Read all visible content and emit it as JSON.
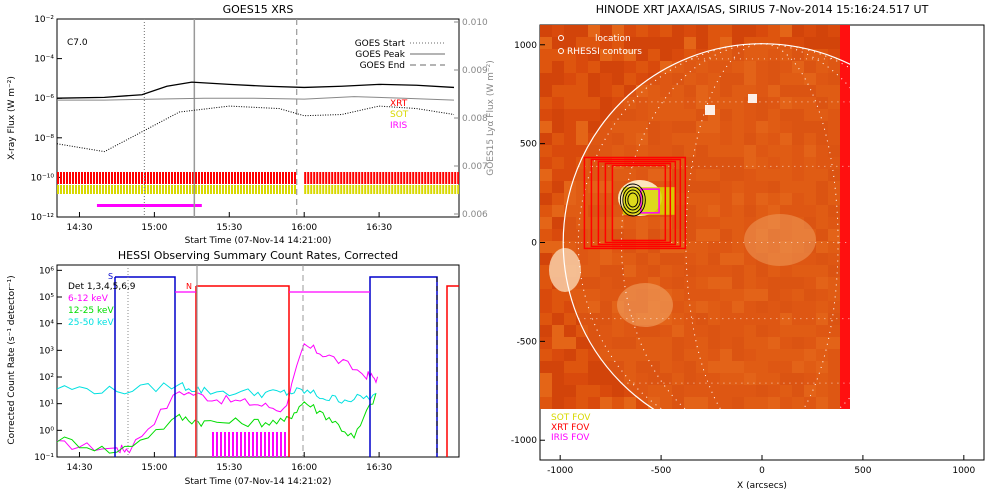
{
  "goes_panel": {
    "title": "GOES15 XRS",
    "flare_class": "C7.0",
    "ylabel": "X-ray Flux (W m⁻²)",
    "y2label": "GOES15 Lyα Flux (W m⁻²)",
    "xlabel": "Start Time (07-Nov-14 14:21:00)",
    "y_ticks": [
      "10⁻²",
      "10⁻⁴",
      "10⁻⁶",
      "10⁻⁸",
      "10⁻¹⁰",
      "10⁻¹²"
    ],
    "y2_ticks": [
      "0.010",
      "0.009",
      "0.008",
      "0.007",
      "0.006"
    ],
    "x_ticks": [
      "14:30",
      "15:00",
      "15:30",
      "16:00",
      "16:30"
    ],
    "legend": [
      "GOES Start",
      "GOES Peak",
      "GOES End"
    ],
    "instrument_labels": [
      {
        "text": "XRT",
        "color": "#ff0000"
      },
      {
        "text": "SOT",
        "color": "#d8d800"
      },
      {
        "text": "IRIS",
        "color": "#ff00ff"
      }
    ]
  },
  "hessi_panel": {
    "title": "HESSI Observing Summary Count Rates, Corrected",
    "ylabel": "Corrected Count Rate (s⁻¹ detector⁻¹)",
    "xlabel": "Start Time (07-Nov-14 14:21:02)",
    "y_ticks": [
      "10⁶",
      "10⁵",
      "10⁴",
      "10³",
      "10²",
      "10¹",
      "10⁰",
      "10⁻¹"
    ],
    "x_ticks": [
      "14:30",
      "15:00",
      "15:30",
      "16:00",
      "16:30"
    ],
    "legend": [
      {
        "text": "Det 1,3,4,5,6,9",
        "color": "#000000"
      },
      {
        "text": "6-12 keV",
        "color": "#ff00ff"
      },
      {
        "text": "12-25 keV",
        "color": "#00dd00"
      },
      {
        "text": "25-50 keV",
        "color": "#00e0e0"
      }
    ],
    "markers": [
      {
        "text": "S",
        "color": "#0000cc"
      },
      {
        "text": "N",
        "color": "#ff0000"
      }
    ]
  },
  "xrt_panel": {
    "title": "HINODE XRT JAXA/ISAS, SIRIUS  7-Nov-2014 15:16:24.517 UT",
    "xlabel": "X (arcsecs)",
    "x_ticks": [
      "-1000",
      "-500",
      "0",
      "500",
      "1000"
    ],
    "y_ticks": [
      "1000",
      "500",
      "0",
      "-500",
      "-1000"
    ],
    "legend_top": [
      "location",
      "RHESSI contours"
    ],
    "legend_bottom": [
      {
        "text": "SOT FOV",
        "color": "#d8d800"
      },
      {
        "text": "XRT FOV",
        "color": "#ff0000"
      },
      {
        "text": "IRIS FOV",
        "color": "#ff00ff"
      }
    ]
  },
  "chart_data": [
    {
      "type": "line",
      "title": "GOES15 XRS",
      "xlabel": "Start Time (07-Nov-14 14:21:00)",
      "ylabel": "X-ray Flux (W m⁻²)",
      "y_scale": "log",
      "ylim": [
        1e-12,
        0.01
      ],
      "xlim": [
        "14:21",
        "17:02"
      ],
      "annotation": "C7.0",
      "vertical_markers": [
        {
          "name": "GOES Start",
          "time": "14:56",
          "style": "dotted"
        },
        {
          "name": "GOES Peak",
          "time": "15:16",
          "style": "solid"
        },
        {
          "name": "GOES End",
          "time": "15:57",
          "style": "dashed"
        }
      ],
      "series": [
        {
          "name": "",
          "color": "#000000",
          "x": [
            "14:21",
            "14:40",
            "14:55",
            "15:05",
            "15:15",
            "15:30",
            "15:45",
            "16:00",
            "16:15",
            "16:30",
            "16:45",
            "17:00"
          ],
          "y": [
            1e-06,
            1.1e-06,
            1.5e-06,
            4e-06,
            6.5e-06,
            5e-06,
            4e-06,
            3.5e-06,
            4e-06,
            5e-06,
            4.5e-06,
            3.5e-06
          ]
        },
        {
          "name": "",
          "color": "#888888",
          "x": [
            "14:21",
            "14:40",
            "15:00",
            "15:20",
            "15:40",
            "16:00",
            "16:20",
            "16:40",
            "17:00"
          ],
          "y": [
            8e-07,
            8e-07,
            9e-07,
            1e-06,
            1e-06,
            9e-07,
            1.2e-06,
            1e-06,
            8e-07
          ]
        },
        {
          "name": "",
          "color": "#000000",
          "x": [
            "14:21",
            "14:40",
            "14:55",
            "15:10",
            "15:30",
            "15:50",
            "16:00",
            "16:15",
            "16:30",
            "16:45",
            "17:00"
          ],
          "y": [
            5e-09,
            2e-09,
            2e-08,
            2e-07,
            4e-07,
            3e-07,
            1.3e-07,
            1.5e-07,
            4e-07,
            3e-07,
            1.5e-07
          ]
        }
      ],
      "instrument_bars": [
        {
          "name": "XRT",
          "color": "#ff0000",
          "intervals": [
            [
              "14:21",
              "15:57"
            ],
            [
              "16:00",
              "17:02"
            ]
          ]
        },
        {
          "name": "SOT",
          "color": "#d8d800",
          "intervals": [
            [
              "14:21",
              "15:57"
            ],
            [
              "16:00",
              "17:02"
            ]
          ]
        },
        {
          "name": "IRIS",
          "color": "#ff00ff",
          "intervals": [
            [
              "14:37",
              "15:19"
            ]
          ]
        }
      ],
      "x_ticks": [
        "14:30",
        "15:00",
        "15:30",
        "16:00",
        "16:30"
      ],
      "y2_ticks": [
        0.006,
        0.007,
        0.008,
        0.009,
        0.01
      ]
    },
    {
      "type": "line",
      "title": "HESSI Observing Summary Count Rates, Corrected",
      "xlabel": "Start Time (07-Nov-14 14:21:02)",
      "ylabel": "Corrected Count Rate (s⁻¹ detector⁻¹)",
      "y_scale": "log",
      "ylim": [
        0.1,
        1000000.0
      ],
      "xlim": [
        "14:21",
        "17:02"
      ],
      "series": [
        {
          "name": "6-12 keV",
          "color": "#ff00ff",
          "x": [
            "14:21",
            "14:45",
            "14:50",
            "15:10",
            "15:25",
            "15:40",
            "15:52",
            "16:00",
            "16:10",
            "16:25",
            "16:30"
          ],
          "y": [
            0.3,
            0.2,
            0.2,
            30,
            15,
            10,
            6,
            1500,
            600,
            120,
            80
          ]
        },
        {
          "name": "12-25 keV",
          "color": "#00dd00",
          "x": [
            "14:21",
            "14:45",
            "15:10",
            "15:20",
            "15:40",
            "15:52",
            "16:00",
            "16:10",
            "16:20",
            "16:30"
          ],
          "y": [
            0.5,
            0.15,
            3,
            2,
            2,
            2,
            12,
            3,
            0.5,
            40
          ]
        },
        {
          "name": "25-50 keV",
          "color": "#00e0e0",
          "x": [
            "14:21",
            "14:45",
            "15:10",
            "15:20",
            "15:40",
            "15:52",
            "16:00",
            "16:10",
            "16:20",
            "16:30"
          ],
          "y": [
            40,
            30,
            50,
            30,
            25,
            25,
            30,
            15,
            15,
            20
          ]
        }
      ]
    },
    {
      "type": "heatmap",
      "title": "HINODE XRT JAXA/ISAS, SIRIUS  7-Nov-2014 15:16:24.517 UT",
      "xlabel": "X (arcsecs)",
      "xlim": [
        -1100,
        1100
      ],
      "ylim": [
        -1100,
        1100
      ],
      "x_ticks": [
        -1000,
        -500,
        0,
        500,
        1000
      ],
      "y_ticks": [
        1000,
        500,
        0,
        -500,
        -1000
      ],
      "image_extent": {
        "x": [
          -1100,
          450
        ],
        "y": [
          -850,
          1100
        ]
      },
      "solar_limb_radius": 985,
      "fov_boxes": [
        {
          "name": "SOT FOV",
          "color": "#d8d800",
          "x": [
            -690,
            -430
          ],
          "y": [
            140,
            280
          ]
        },
        {
          "name": "XRT FOV",
          "color": "#ff0000",
          "x": [
            -880,
            -380
          ],
          "y": [
            -30,
            430
          ]
        },
        {
          "name": "IRIS FOV",
          "color": "#ff00ff",
          "x": [
            -600,
            -510
          ],
          "y": [
            150,
            270
          ]
        }
      ],
      "rhessi_location": {
        "x": -640,
        "y": 215
      }
    }
  ]
}
